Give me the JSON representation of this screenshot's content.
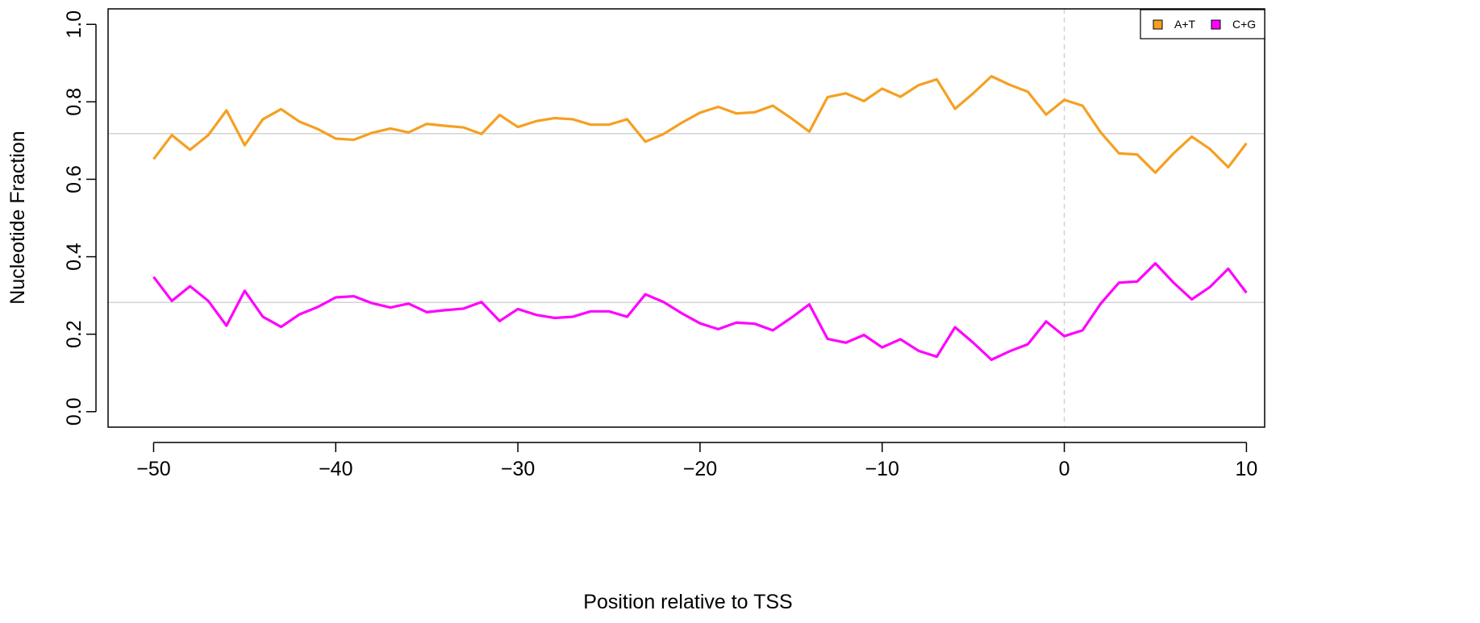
{
  "chart_data": {
    "type": "line",
    "title": "",
    "xlabel": "Position relative to TSS",
    "ylabel": "Nucleotide Fraction",
    "xlim": [
      -52.5,
      11.0
    ],
    "ylim": [
      -0.04,
      1.04
    ],
    "x_ticks": [
      -50,
      -40,
      -30,
      -20,
      -10,
      0,
      10
    ],
    "x_tick_labels": [
      "−50",
      "−40",
      "−30",
      "−20",
      "−10",
      "0",
      "10"
    ],
    "y_ticks": [
      0.0,
      0.2,
      0.4,
      0.6,
      0.8,
      1.0
    ],
    "y_tick_labels": [
      "0.0",
      "0.2",
      "0.4",
      "0.6",
      "0.8",
      "1.0"
    ],
    "legend_position": "top-right",
    "reference_vline": {
      "x": 0,
      "style": "dashed",
      "color": "#d3d3d3"
    },
    "reference_hlines": [
      {
        "y": 0.718,
        "color": "#d3d3d3"
      },
      {
        "y": 0.282,
        "color": "#d3d3d3"
      }
    ],
    "x": [
      -50,
      -49,
      -48,
      -47,
      -46,
      -45,
      -44,
      -43,
      -42,
      -41,
      -40,
      -39,
      -38,
      -37,
      -36,
      -35,
      -34,
      -33,
      -32,
      -31,
      -30,
      -29,
      -28,
      -27,
      -26,
      -25,
      -24,
      -23,
      -22,
      -21,
      -20,
      -19,
      -18,
      -17,
      -16,
      -15,
      -14,
      -13,
      -12,
      -11,
      -10,
      -9,
      -8,
      -7,
      -6,
      -5,
      -4,
      -3,
      -2,
      -1,
      0,
      1,
      2,
      3,
      4,
      5,
      6,
      7,
      8,
      9,
      10
    ],
    "series": [
      {
        "name": "A+T",
        "color": "#f5a020",
        "values": [
          0.652,
          0.714,
          0.676,
          0.714,
          0.778,
          0.688,
          0.755,
          0.781,
          0.749,
          0.73,
          0.705,
          0.702,
          0.72,
          0.731,
          0.721,
          0.743,
          0.738,
          0.734,
          0.717,
          0.766,
          0.735,
          0.75,
          0.758,
          0.755,
          0.741,
          0.741,
          0.755,
          0.697,
          0.717,
          0.746,
          0.772,
          0.787,
          0.77,
          0.773,
          0.79,
          0.758,
          0.723,
          0.812,
          0.822,
          0.802,
          0.834,
          0.813,
          0.843,
          0.858,
          0.782,
          0.822,
          0.866,
          0.844,
          0.826,
          0.767,
          0.805,
          0.79,
          0.721,
          0.667,
          0.664,
          0.617,
          0.667,
          0.71,
          0.678,
          0.631,
          0.693
        ]
      },
      {
        "name": "C+G",
        "color": "#ff00ff",
        "values": [
          0.348,
          0.286,
          0.324,
          0.286,
          0.222,
          0.312,
          0.245,
          0.219,
          0.251,
          0.27,
          0.295,
          0.298,
          0.28,
          0.269,
          0.279,
          0.257,
          0.262,
          0.266,
          0.283,
          0.234,
          0.265,
          0.25,
          0.242,
          0.245,
          0.259,
          0.259,
          0.245,
          0.303,
          0.283,
          0.254,
          0.228,
          0.213,
          0.23,
          0.227,
          0.21,
          0.242,
          0.277,
          0.188,
          0.178,
          0.198,
          0.166,
          0.187,
          0.157,
          0.142,
          0.218,
          0.178,
          0.134,
          0.156,
          0.174,
          0.233,
          0.195,
          0.21,
          0.279,
          0.333,
          0.336,
          0.383,
          0.333,
          0.29,
          0.322,
          0.369,
          0.307
        ]
      }
    ]
  }
}
